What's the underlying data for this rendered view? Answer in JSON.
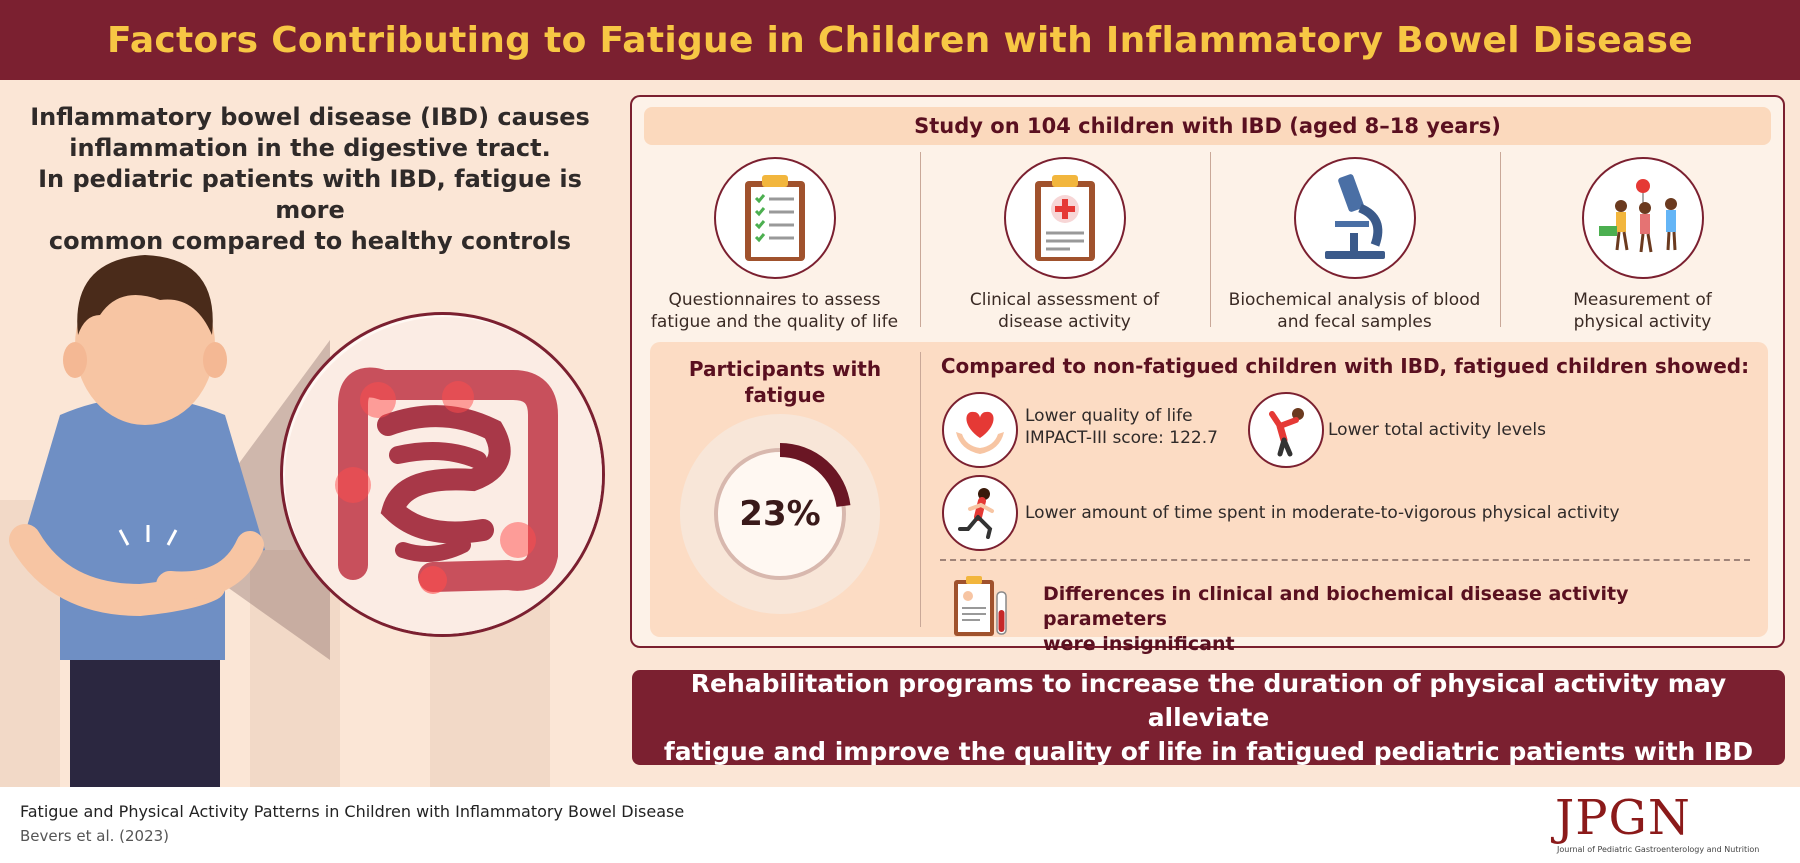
{
  "header": {
    "title": "Factors Contributing to Fatigue in Children with Inflammatory Bowel Disease"
  },
  "intro": {
    "line1": "Inflammatory bowel disease (IBD) causes",
    "line2": "inflammation in the digestive tract.",
    "line3": "In pediatric patients with IBD, fatigue is more",
    "line4": "common compared to healthy controls"
  },
  "study": {
    "title": "Study on 104 children with IBD (aged 8–18 years)",
    "methods": [
      {
        "icon": "clipboard-checklist-icon",
        "line1": "Questionnaires to assess",
        "line2": "fatigue and the quality of life"
      },
      {
        "icon": "medical-clipboard-icon",
        "line1": "Clinical assessment of",
        "line2": "disease activity"
      },
      {
        "icon": "microscope-icon",
        "line1": "Biochemical analysis of blood",
        "line2": "and fecal samples"
      },
      {
        "icon": "playing-children-icon",
        "line1": "Measurement of",
        "line2": "physical activity"
      }
    ]
  },
  "participants": {
    "title_line1": "Participants with",
    "title_line2": "fatigue",
    "percent_label": "23%",
    "percent_value": 23
  },
  "comparison": {
    "title": "Compared to non-fatigued children with IBD, fatigued children showed:",
    "findings": [
      {
        "icon": "heart-hands-icon",
        "line1": "Lower quality of life",
        "line2": "IMPACT-III score: 122.7"
      },
      {
        "icon": "stretching-person-icon",
        "line1": "Lower total activity levels"
      },
      {
        "icon": "running-girl-icon",
        "line1": "Lower amount of time spent in moderate-to-vigorous physical activity"
      }
    ],
    "insignificant": {
      "icon": "report-tube-icon",
      "line1": "Differences in clinical and biochemical disease activity parameters",
      "line2": "were insignificant"
    }
  },
  "rehab": {
    "line1": "Rehabilitation programs to increase the duration of physical activity may alleviate",
    "line2": "fatigue and improve the quality of life in fatigued pediatric patients with IBD"
  },
  "footer": {
    "title": "Fatigue and Physical Activity Patterns in Children with Inflammatory Bowel Disease",
    "authors": "Bevers et al. (2023)",
    "logo": "JPGN",
    "logo_subtitle": "Journal of Pediatric Gastroenterology and Nutrition"
  },
  "colors": {
    "maroon": "#7b2030",
    "title_yellow": "#f7c744",
    "background": "#fbe6d6",
    "panel": "#fcdcc4"
  }
}
